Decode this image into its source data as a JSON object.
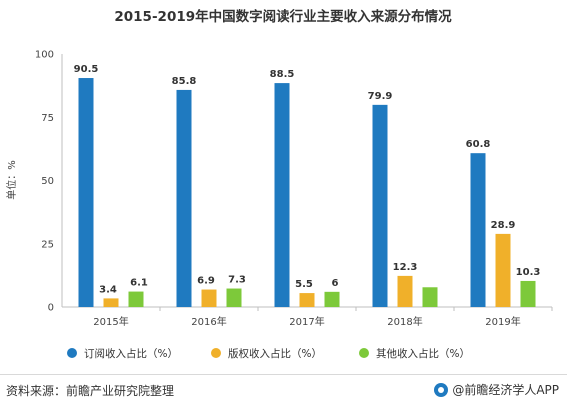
{
  "chart_data": {
    "type": "bar",
    "title": "2015-2019年中国数字阅读行业主要收入来源分布情况",
    "ylabel": "单位：%",
    "xlabel": "",
    "ylim": [
      0,
      100
    ],
    "yticks": [
      0,
      25,
      50,
      75,
      100
    ],
    "categories": [
      "2015年",
      "2016年",
      "2017年",
      "2018年",
      "2019年"
    ],
    "series": [
      {
        "name": "订阅收入占比（%）",
        "color": "#1f7ac0",
        "values": [
          90.5,
          85.8,
          88.5,
          79.9,
          60.8
        ],
        "labels": [
          "90.5",
          "85.8",
          "88.5",
          "79.9",
          "60.8"
        ]
      },
      {
        "name": "版权收入占比（%）",
        "color": "#f0b02a",
        "values": [
          3.4,
          6.9,
          5.5,
          12.3,
          28.9
        ],
        "labels": [
          "3.4",
          "6.9",
          "5.5",
          "12.3",
          "28.9"
        ]
      },
      {
        "name": "其他收入占比（%）",
        "color": "#7dc93a",
        "values": [
          6.1,
          7.3,
          6,
          7.8,
          10.3
        ],
        "labels": [
          "6.1",
          "7.3",
          "6",
          "",
          "10.3"
        ]
      }
    ],
    "legend_position": "bottom",
    "grid": false
  },
  "footer": {
    "source": "资料来源：前瞻产业研究院整理",
    "brand": "@前瞻经济学人APP",
    "brand_icon": "qianzhan-logo-icon"
  }
}
